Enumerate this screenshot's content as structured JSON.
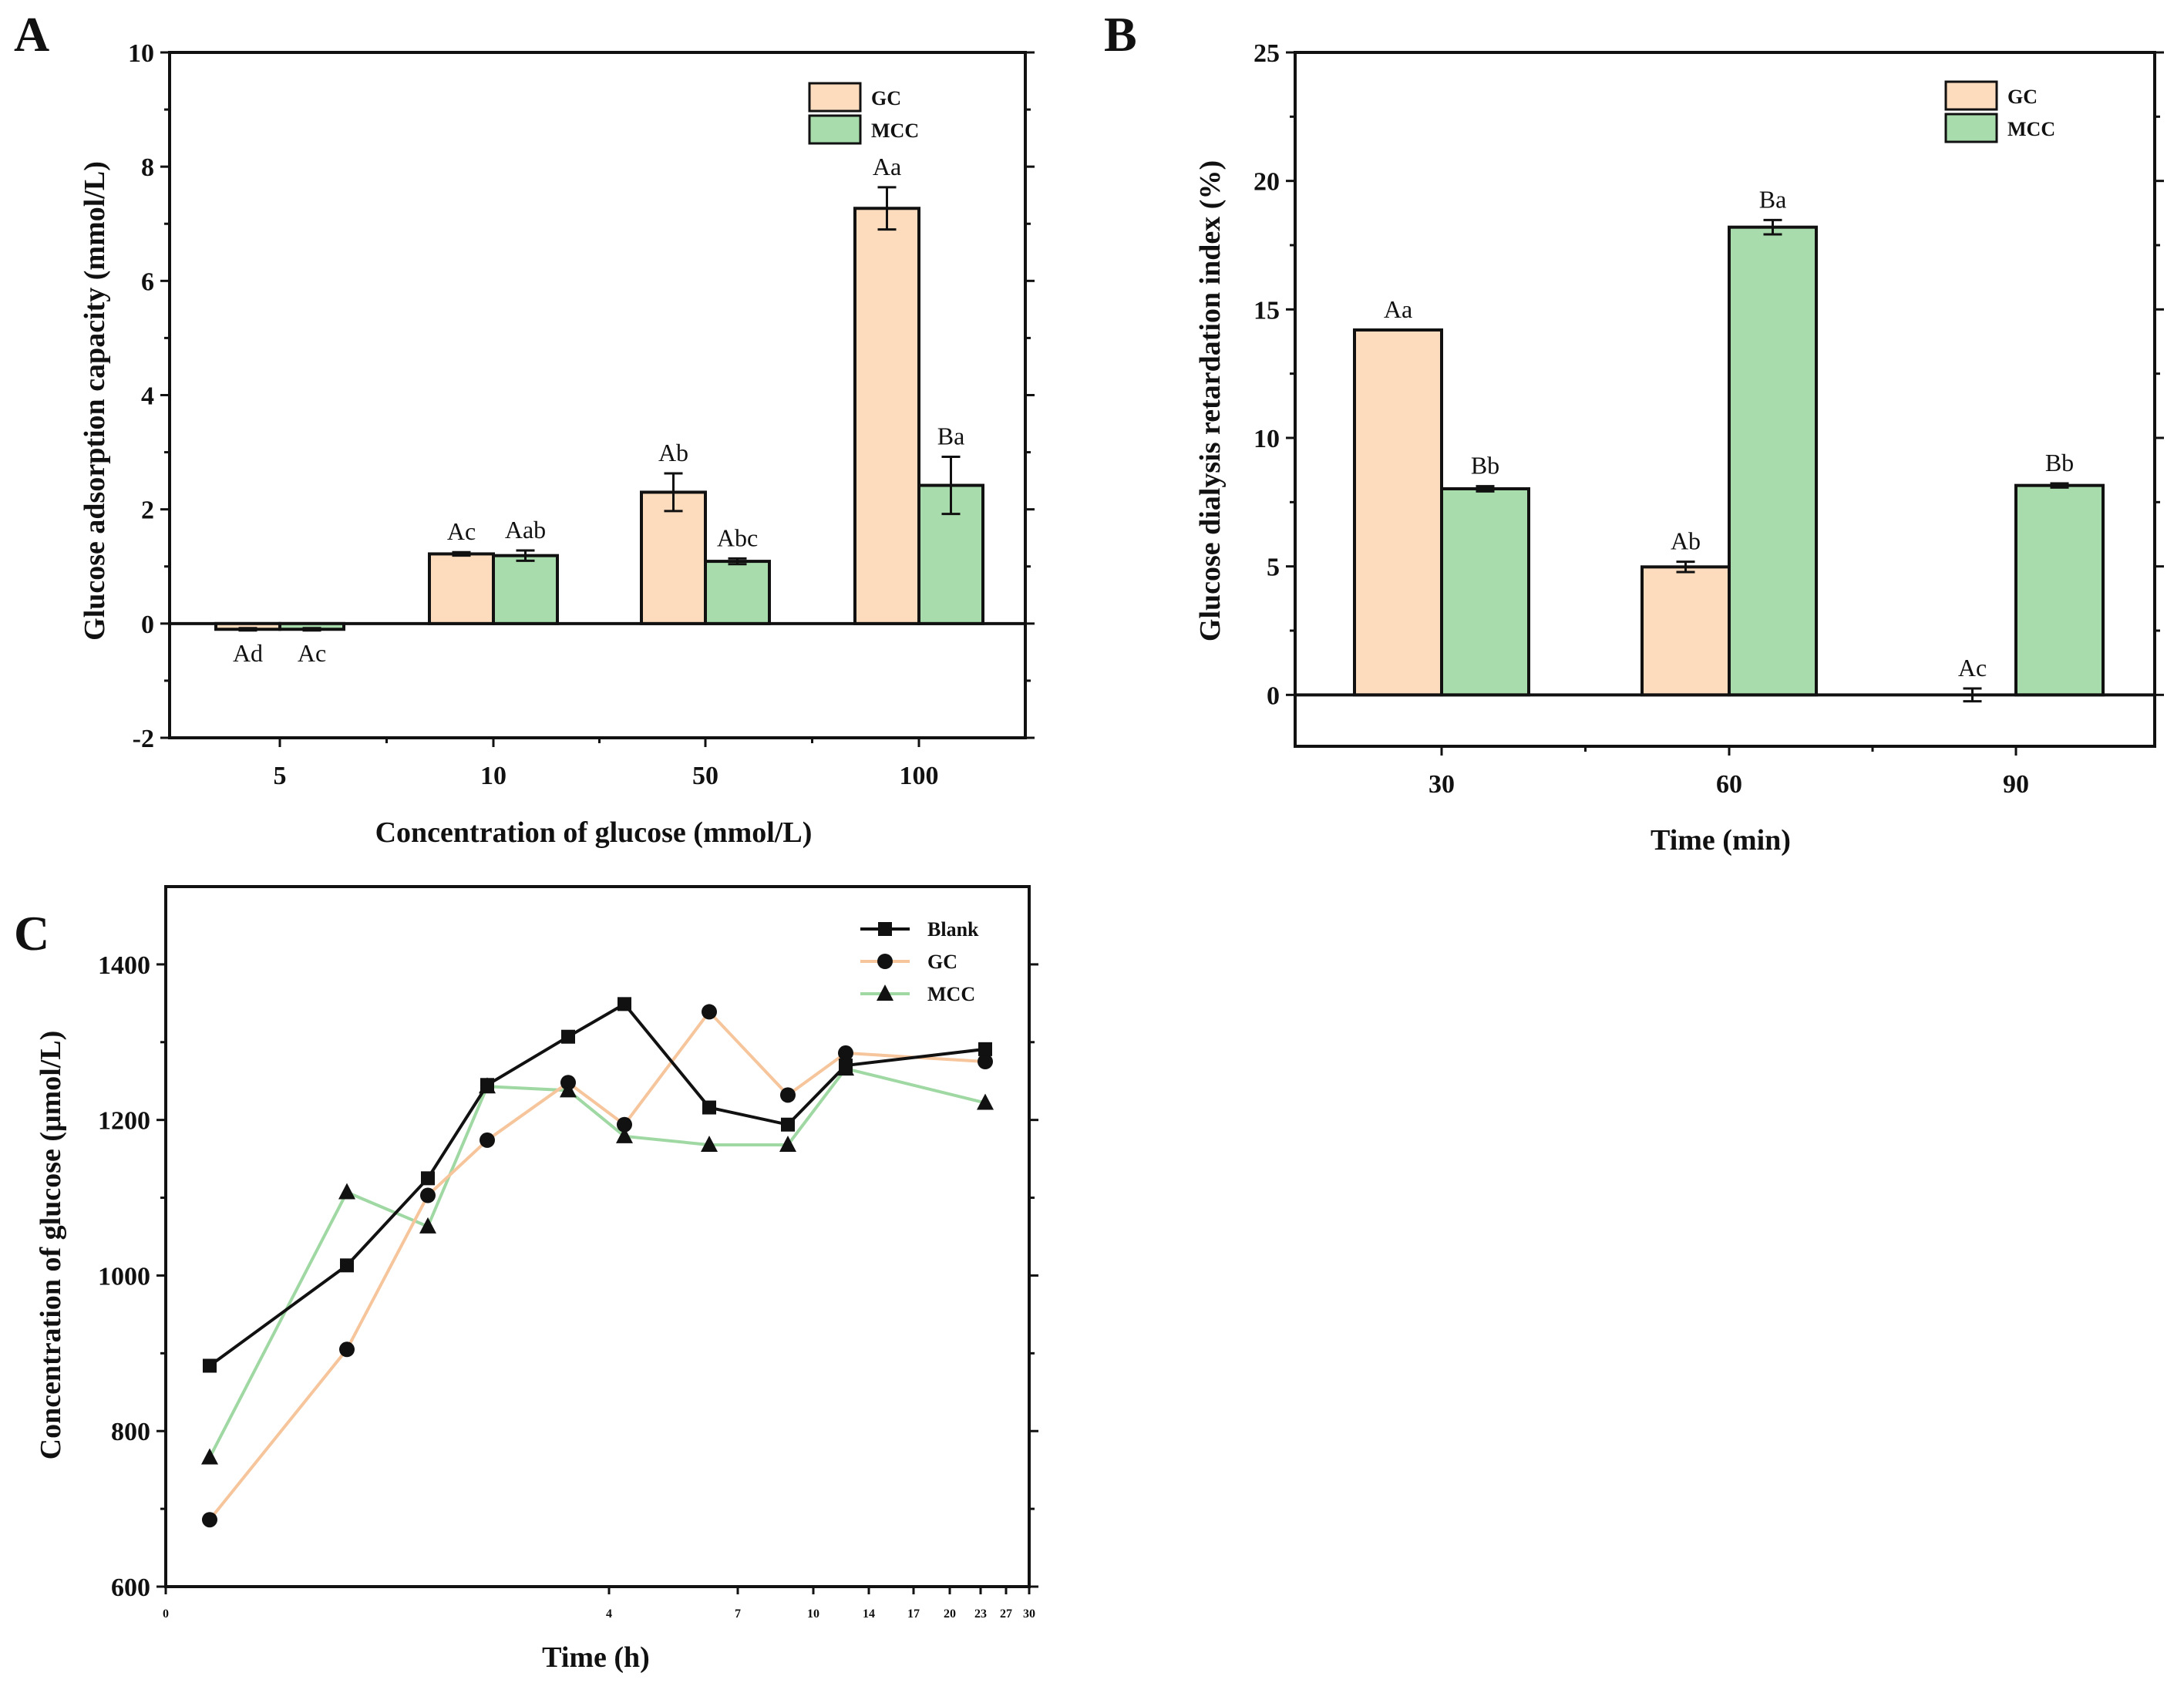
{
  "colors": {
    "GC": "#fcdcbd",
    "MCC": "#a8dcad",
    "GC_line": "#f6c59b",
    "MCC_line": "#9fd8a3",
    "Blank": "#111111"
  },
  "chart_data": [
    {
      "panel": "A",
      "type": "bar",
      "categories": [
        "5",
        "10",
        "50",
        "100"
      ],
      "series": [
        {
          "name": "GC",
          "values": [
            -0.1,
            1.22,
            2.3,
            7.27
          ],
          "errors": [
            0.02,
            0.03,
            0.33,
            0.37
          ],
          "labels": [
            "Ad",
            "Ac",
            "Ab",
            "Aa"
          ]
        },
        {
          "name": "MCC",
          "values": [
            -0.1,
            1.19,
            1.09,
            2.42
          ],
          "errors": [
            0.02,
            0.09,
            0.05,
            0.5
          ],
          "labels": [
            "Ac",
            "Aab",
            "Abc",
            "Ba"
          ]
        }
      ],
      "xlabel": "Concentration of glucose (mmol/L)",
      "ylabel": "Glucose adsorption capacity (mmol/L)",
      "ylim": [
        -2,
        10
      ],
      "yticks": [
        -2,
        0,
        2,
        4,
        6,
        8,
        10
      ],
      "legend": "top-right"
    },
    {
      "panel": "B",
      "type": "bar",
      "categories": [
        "30",
        "60",
        "90"
      ],
      "series": [
        {
          "name": "GC",
          "values": [
            14.2,
            4.98,
            0
          ],
          "errors": [
            0.0,
            0.2,
            0.25
          ],
          "labels": [
            "Aa",
            "Ab",
            "Ac"
          ]
        },
        {
          "name": "MCC",
          "values": [
            8.02,
            18.2,
            8.15
          ],
          "errors": [
            0.1,
            0.28,
            0.08
          ],
          "labels": [
            "Bb",
            "Ba",
            "Bb"
          ]
        }
      ],
      "xlabel": "Time (min)",
      "ylabel": "Glucose dialysis retardation index (%)",
      "ylim": [
        -2,
        25
      ],
      "yticks": [
        0,
        5,
        10,
        15,
        20,
        25
      ],
      "legend": "top-right"
    },
    {
      "panel": "C",
      "type": "line",
      "x_tick_labels": [
        "0",
        "4",
        "7",
        "10",
        "14",
        "17",
        "20",
        "23",
        "27",
        "30"
      ],
      "series": [
        {
          "name": "Blank",
          "marker": "square",
          "values": [
            884,
            1013,
            1125,
            1245,
            1307,
            1349,
            1216,
            1194,
            1270,
            1291
          ]
        },
        {
          "name": "GC",
          "marker": "circle",
          "values": [
            686,
            905,
            1103,
            1174,
            1248,
            1194,
            1339,
            1232,
            1286,
            1275
          ]
        },
        {
          "name": "MCC",
          "marker": "triangle",
          "values": [
            766,
            1107,
            1063,
            1243,
            1238,
            1179,
            1168,
            1168,
            1266,
            1222
          ]
        }
      ],
      "xlabel": "Time (h)",
      "ylabel": "Concentration of glucose (μmol/L)",
      "ylim": [
        600,
        1500
      ],
      "yticks": [
        600,
        800,
        1000,
        1200,
        1400
      ],
      "legend": "top-right"
    }
  ]
}
